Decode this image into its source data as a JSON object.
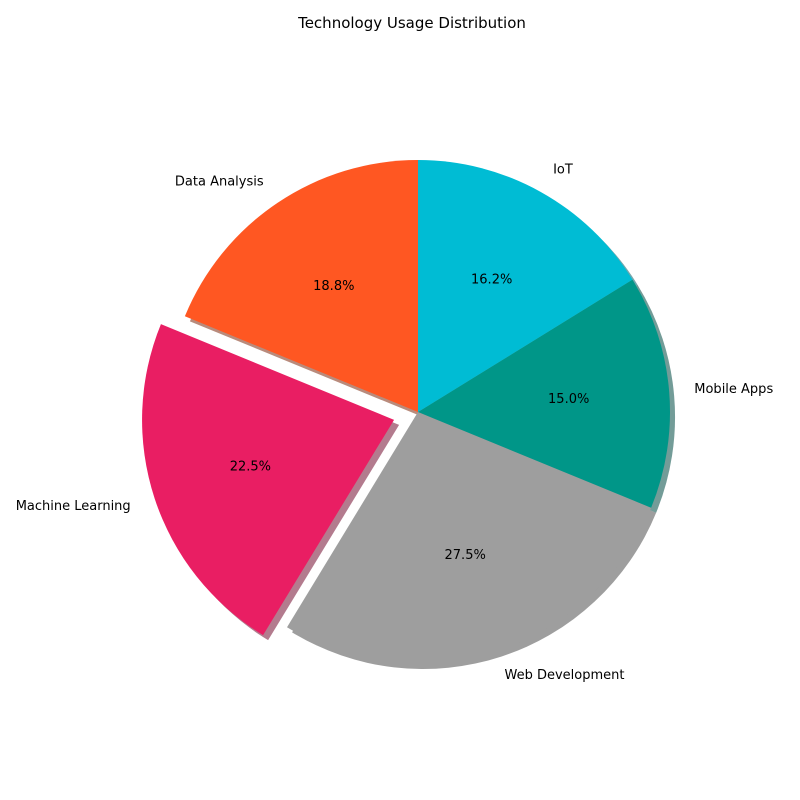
{
  "chart_data": {
    "type": "pie",
    "title": "Technology Usage Distribution",
    "start_angle_deg": 90,
    "direction": "counterclockwise",
    "shadow": true,
    "slices": [
      {
        "label": "Data Analysis",
        "value": 18.8,
        "pct_label": "18.8%",
        "color": "#FF5722",
        "exploded": false
      },
      {
        "label": "Machine Learning",
        "value": 22.5,
        "pct_label": "22.5%",
        "color": "#E91E63",
        "exploded": true
      },
      {
        "label": "Web Development",
        "value": 27.5,
        "pct_label": "27.5%",
        "color": "#9E9E9E",
        "exploded": false
      },
      {
        "label": "Mobile Apps",
        "value": 15.0,
        "pct_label": "15.0%",
        "color": "#009688",
        "exploded": false
      },
      {
        "label": "IoT",
        "value": 16.2,
        "pct_label": "16.2%",
        "color": "#00BCD4",
        "exploded": false
      }
    ]
  }
}
